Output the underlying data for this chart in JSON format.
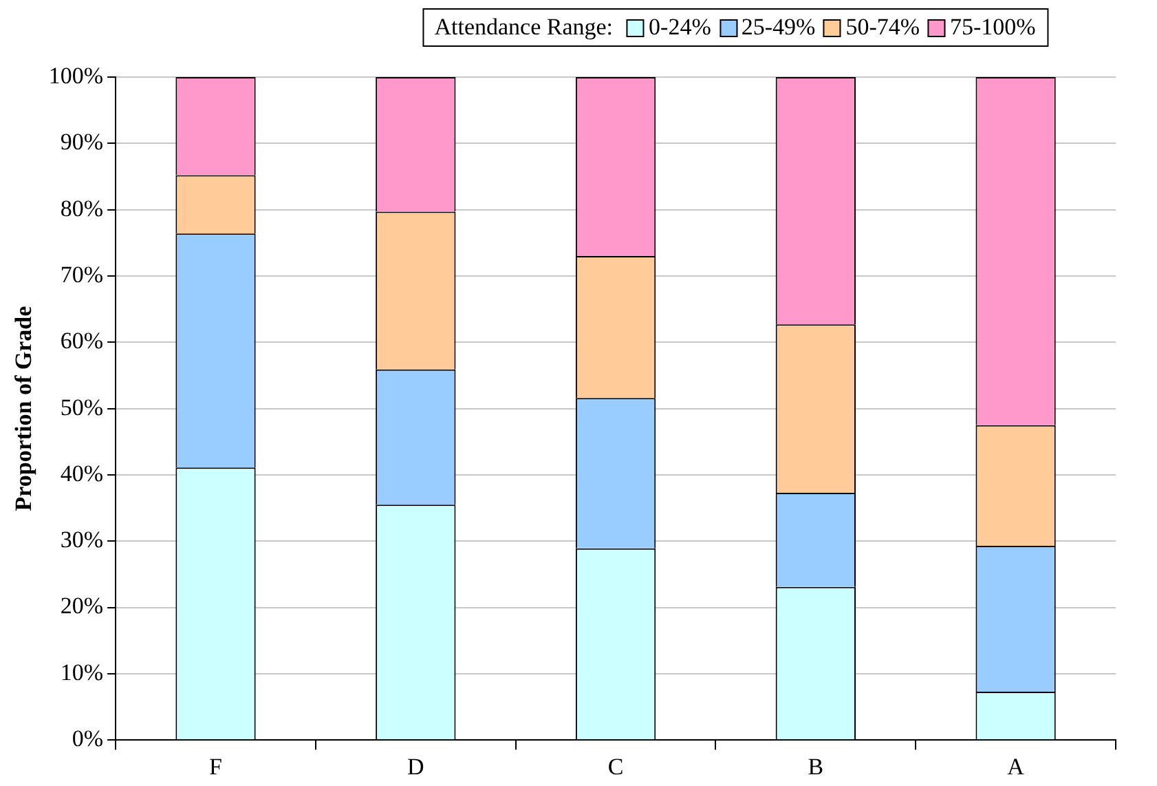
{
  "chart_data": {
    "type": "bar",
    "stacked": true,
    "ylabel": "Proportion of Grade",
    "legend_title": "Attendance Range:",
    "legend": "top",
    "categories": [
      "F",
      "D",
      "C",
      "B",
      "A"
    ],
    "series": [
      {
        "name": "0-24%",
        "color": "#ccffff",
        "values": [
          41.1,
          35.5,
          28.9,
          23.1,
          7.3
        ]
      },
      {
        "name": "25-49%",
        "color": "#99ccff",
        "values": [
          35.3,
          20.4,
          22.7,
          14.2,
          22.0
        ]
      },
      {
        "name": "50-74%",
        "color": "#ffcc99",
        "values": [
          8.8,
          23.8,
          21.4,
          25.4,
          18.2
        ]
      },
      {
        "name": "75-100%",
        "color": "#ff99cc",
        "values": [
          14.8,
          20.3,
          27.0,
          37.3,
          52.5
        ]
      }
    ],
    "ylim": [
      0,
      100
    ],
    "yticks": [
      {
        "value": 0,
        "label": "0%"
      },
      {
        "value": 10,
        "label": "10%"
      },
      {
        "value": 20,
        "label": "20%"
      },
      {
        "value": 30,
        "label": "30%"
      },
      {
        "value": 40,
        "label": "40%"
      },
      {
        "value": 50,
        "label": "50%"
      },
      {
        "value": 60,
        "label": "60%"
      },
      {
        "value": 70,
        "label": "70%"
      },
      {
        "value": 80,
        "label": "80%"
      },
      {
        "value": 90,
        "label": "90%"
      },
      {
        "value": 100,
        "label": "100%"
      }
    ],
    "grid": "y"
  }
}
